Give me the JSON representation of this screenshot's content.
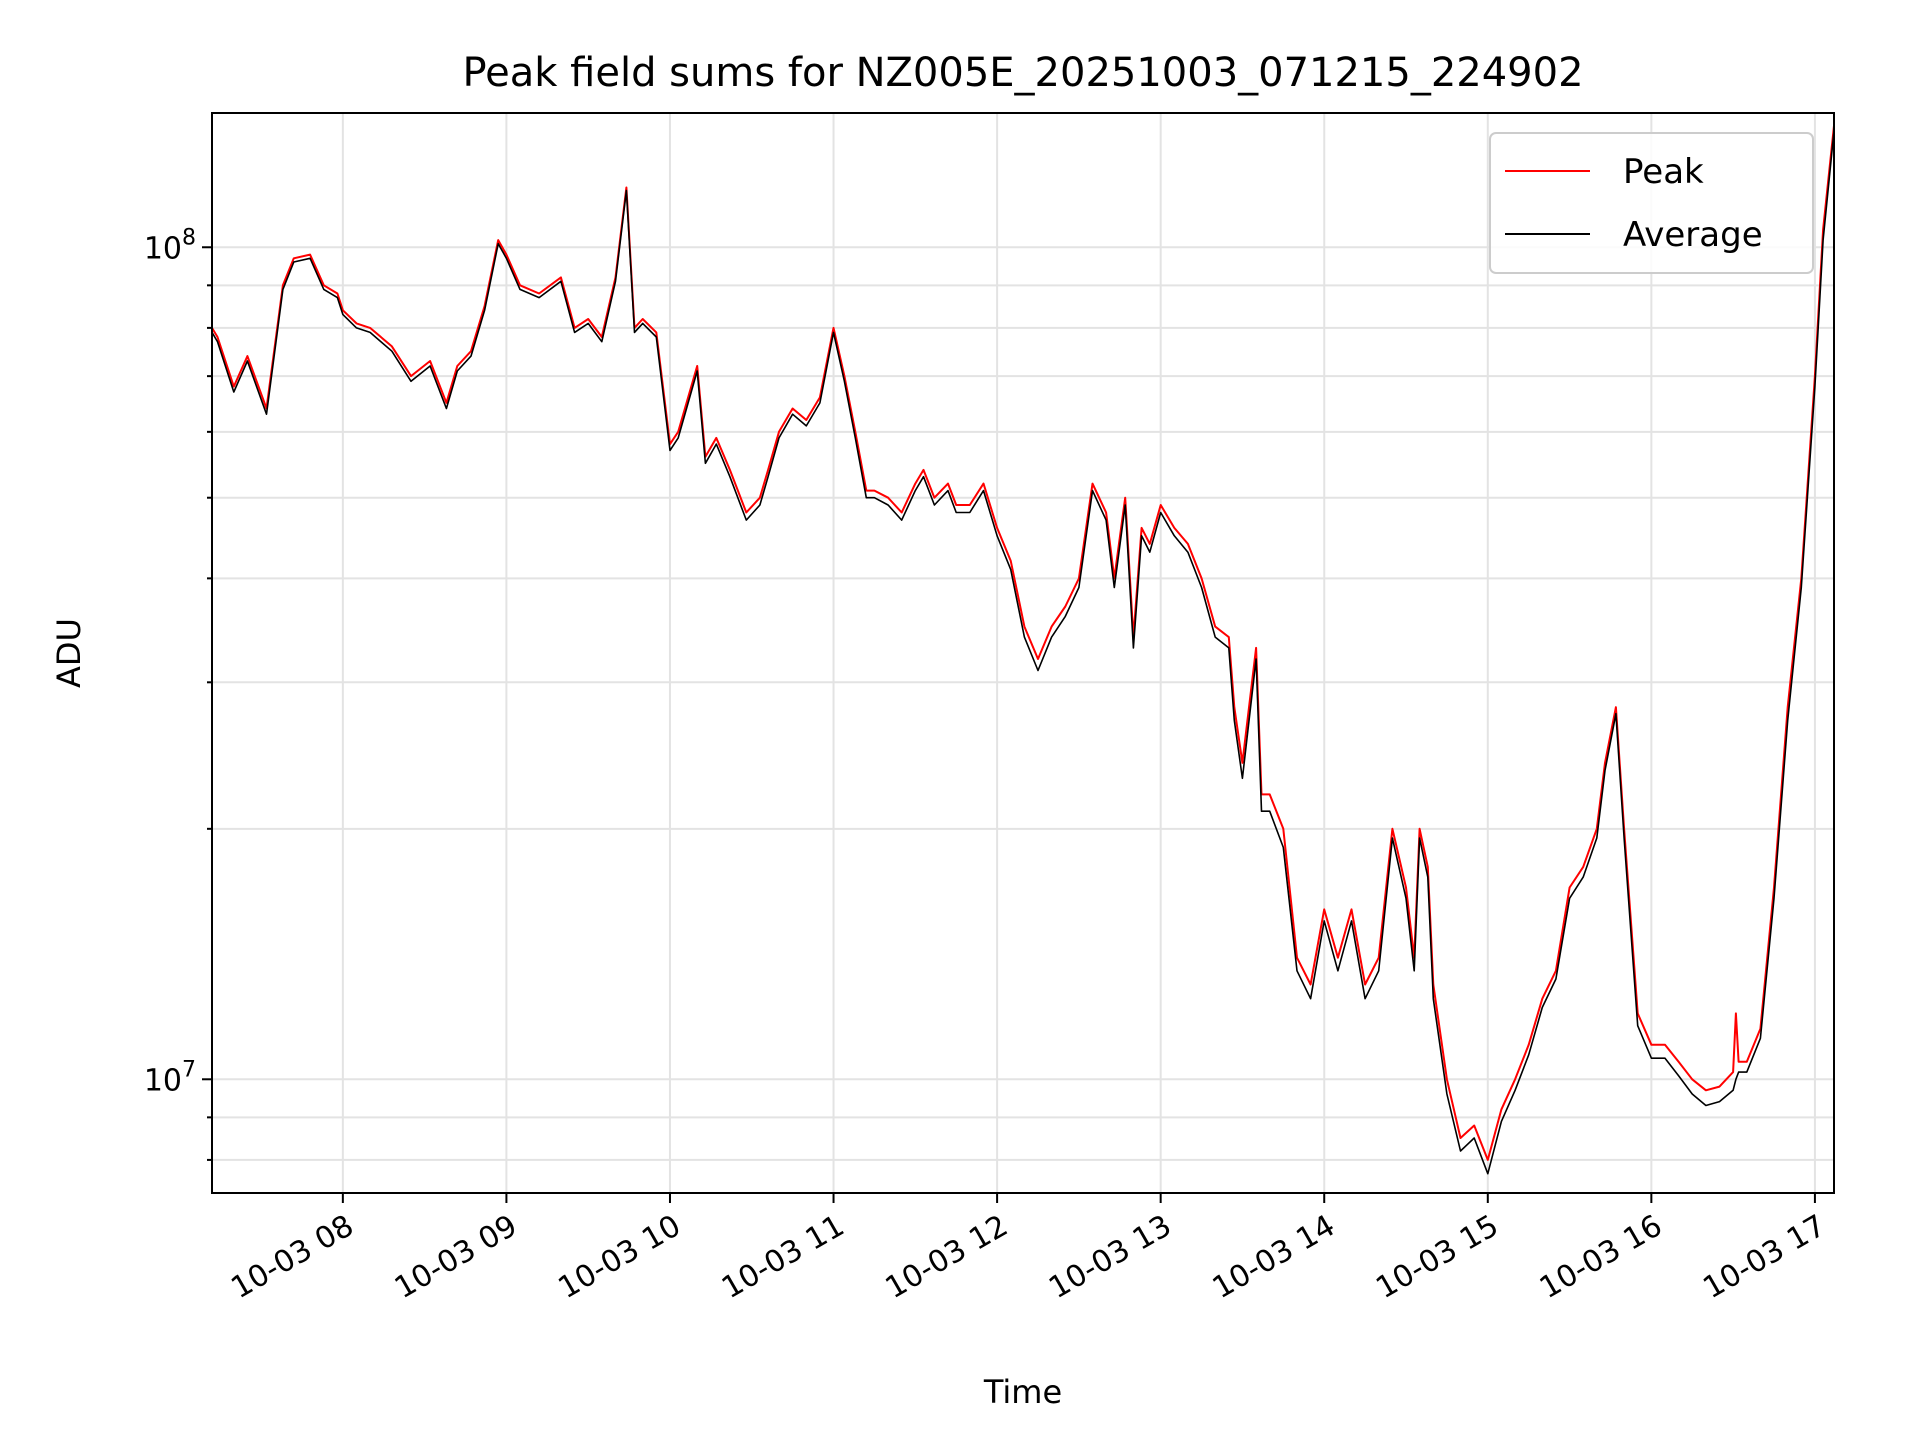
{
  "chart_data": {
    "type": "line",
    "title": "Peak field sums for NZ005E_20251003_071215_224902",
    "xlabel": "Time",
    "ylabel": "ADU",
    "y_scale": "log",
    "ylim": [
      7300000,
      145000000
    ],
    "xlim": [
      "2025-10-03 07:12",
      "2025-10-03 17:07"
    ],
    "x_ticks": [
      "10-03 08",
      "10-03 09",
      "10-03 10",
      "10-03 11",
      "10-03 12",
      "10-03 13",
      "10-03 14",
      "10-03 15",
      "10-03 16",
      "10-03 17"
    ],
    "y_tick_labels": [
      {
        "base": "10",
        "exp": "7",
        "value": 10000000
      },
      {
        "base": "10",
        "exp": "8",
        "value": 100000000
      }
    ],
    "grid": true,
    "legend_position": "upper right",
    "series": [
      {
        "name": "Peak",
        "color": "#ff0000",
        "x": [
          "2025-10-03 07:12",
          "2025-10-03 07:14",
          "2025-10-03 07:20",
          "2025-10-03 07:25",
          "2025-10-03 07:32",
          "2025-10-03 07:38",
          "2025-10-03 07:42",
          "2025-10-03 07:48",
          "2025-10-03 07:53",
          "2025-10-03 07:58",
          "2025-10-03 08:00",
          "2025-10-03 08:05",
          "2025-10-03 08:10",
          "2025-10-03 08:18",
          "2025-10-03 08:25",
          "2025-10-03 08:32",
          "2025-10-03 08:38",
          "2025-10-03 08:42",
          "2025-10-03 08:47",
          "2025-10-03 08:52",
          "2025-10-03 08:57",
          "2025-10-03 09:00",
          "2025-10-03 09:05",
          "2025-10-03 09:12",
          "2025-10-03 09:20",
          "2025-10-03 09:25",
          "2025-10-03 09:30",
          "2025-10-03 09:35",
          "2025-10-03 09:40",
          "2025-10-03 09:44",
          "2025-10-03 09:47",
          "2025-10-03 09:50",
          "2025-10-03 09:55",
          "2025-10-03 10:00",
          "2025-10-03 10:03",
          "2025-10-03 10:10",
          "2025-10-03 10:13",
          "2025-10-03 10:17",
          "2025-10-03 10:22",
          "2025-10-03 10:28",
          "2025-10-03 10:33",
          "2025-10-03 10:36",
          "2025-10-03 10:40",
          "2025-10-03 10:45",
          "2025-10-03 10:50",
          "2025-10-03 10:55",
          "2025-10-03 11:00",
          "2025-10-03 11:04",
          "2025-10-03 11:08",
          "2025-10-03 11:12",
          "2025-10-03 11:15",
          "2025-10-03 11:20",
          "2025-10-03 11:25",
          "2025-10-03 11:30",
          "2025-10-03 11:33",
          "2025-10-03 11:37",
          "2025-10-03 11:42",
          "2025-10-03 11:45",
          "2025-10-03 11:50",
          "2025-10-03 11:55",
          "2025-10-03 12:00",
          "2025-10-03 12:05",
          "2025-10-03 12:10",
          "2025-10-03 12:15",
          "2025-10-03 12:20",
          "2025-10-03 12:25",
          "2025-10-03 12:30",
          "2025-10-03 12:35",
          "2025-10-03 12:40",
          "2025-10-03 12:43",
          "2025-10-03 12:47",
          "2025-10-03 12:50",
          "2025-10-03 12:53",
          "2025-10-03 12:56",
          "2025-10-03 13:00",
          "2025-10-03 13:05",
          "2025-10-03 13:10",
          "2025-10-03 13:15",
          "2025-10-03 13:20",
          "2025-10-03 13:25",
          "2025-10-03 13:27",
          "2025-10-03 13:30",
          "2025-10-03 13:35",
          "2025-10-03 13:37",
          "2025-10-03 13:40",
          "2025-10-03 13:45",
          "2025-10-03 13:50",
          "2025-10-03 13:55",
          "2025-10-03 14:00",
          "2025-10-03 14:05",
          "2025-10-03 14:10",
          "2025-10-03 14:15",
          "2025-10-03 14:20",
          "2025-10-03 14:25",
          "2025-10-03 14:30",
          "2025-10-03 14:33",
          "2025-10-03 14:35",
          "2025-10-03 14:38",
          "2025-10-03 14:40",
          "2025-10-03 14:45",
          "2025-10-03 14:50",
          "2025-10-03 14:55",
          "2025-10-03 15:00",
          "2025-10-03 15:05",
          "2025-10-03 15:10",
          "2025-10-03 15:15",
          "2025-10-03 15:20",
          "2025-10-03 15:25",
          "2025-10-03 15:30",
          "2025-10-03 15:35",
          "2025-10-03 15:40",
          "2025-10-03 15:43",
          "2025-10-03 15:47",
          "2025-10-03 15:50",
          "2025-10-03 15:55",
          "2025-10-03 16:00",
          "2025-10-03 16:05",
          "2025-10-03 16:10",
          "2025-10-03 16:15",
          "2025-10-03 16:20",
          "2025-10-03 16:25",
          "2025-10-03 16:30",
          "2025-10-03 16:31",
          "2025-10-03 16:32",
          "2025-10-03 16:35",
          "2025-10-03 16:40",
          "2025-10-03 16:45",
          "2025-10-03 16:50",
          "2025-10-03 16:55",
          "2025-10-03 17:00",
          "2025-10-03 17:03",
          "2025-10-03 17:07"
        ],
        "y": [
          80000000,
          78000000,
          68000000,
          74000000,
          64000000,
          90000000,
          97000000,
          98000000,
          90000000,
          88000000,
          84000000,
          81000000,
          80000000,
          76000000,
          70000000,
          73000000,
          65000000,
          72000000,
          75000000,
          85000000,
          102000000,
          98000000,
          90000000,
          88000000,
          92000000,
          80000000,
          82000000,
          78000000,
          92000000,
          118000000,
          80000000,
          82000000,
          79000000,
          58000000,
          60000000,
          72000000,
          56000000,
          59000000,
          54000000,
          48000000,
          50000000,
          54000000,
          60000000,
          64000000,
          62000000,
          66000000,
          80000000,
          70000000,
          60000000,
          51000000,
          51000000,
          50000000,
          48000000,
          52000000,
          54000000,
          50000000,
          52000000,
          49000000,
          49000000,
          52000000,
          46000000,
          42000000,
          35000000,
          32000000,
          35000000,
          37000000,
          40000000,
          52000000,
          48000000,
          40000000,
          50000000,
          34000000,
          46000000,
          44000000,
          49000000,
          46000000,
          44000000,
          40000000,
          35000000,
          34000000,
          28000000,
          24000000,
          33000000,
          22000000,
          22000000,
          20000000,
          14000000,
          13000000,
          16000000,
          14000000,
          16000000,
          13000000,
          14000000,
          20000000,
          17000000,
          14000000,
          20000000,
          18000000,
          13000000,
          10000000,
          8500000,
          8800000,
          8000000,
          9200000,
          10000000,
          11000000,
          12500000,
          13500000,
          17000000,
          18000000,
          20000000,
          24000000,
          28000000,
          20000000,
          12000000,
          11000000,
          11000000,
          10500000,
          10000000,
          9700000,
          9800000,
          10200000,
          12000000,
          10500000,
          10500000,
          11500000,
          17000000,
          28000000,
          40000000,
          70000000,
          105000000,
          140000000
        ]
      },
      {
        "name": "Average",
        "color": "#000000",
        "x": [
          "2025-10-03 07:12",
          "2025-10-03 07:14",
          "2025-10-03 07:20",
          "2025-10-03 07:25",
          "2025-10-03 07:32",
          "2025-10-03 07:38",
          "2025-10-03 07:42",
          "2025-10-03 07:48",
          "2025-10-03 07:53",
          "2025-10-03 07:58",
          "2025-10-03 08:00",
          "2025-10-03 08:05",
          "2025-10-03 08:10",
          "2025-10-03 08:18",
          "2025-10-03 08:25",
          "2025-10-03 08:32",
          "2025-10-03 08:38",
          "2025-10-03 08:42",
          "2025-10-03 08:47",
          "2025-10-03 08:52",
          "2025-10-03 08:57",
          "2025-10-03 09:00",
          "2025-10-03 09:05",
          "2025-10-03 09:12",
          "2025-10-03 09:20",
          "2025-10-03 09:25",
          "2025-10-03 09:30",
          "2025-10-03 09:35",
          "2025-10-03 09:40",
          "2025-10-03 09:44",
          "2025-10-03 09:47",
          "2025-10-03 09:50",
          "2025-10-03 09:55",
          "2025-10-03 10:00",
          "2025-10-03 10:03",
          "2025-10-03 10:10",
          "2025-10-03 10:13",
          "2025-10-03 10:17",
          "2025-10-03 10:22",
          "2025-10-03 10:28",
          "2025-10-03 10:33",
          "2025-10-03 10:36",
          "2025-10-03 10:40",
          "2025-10-03 10:45",
          "2025-10-03 10:50",
          "2025-10-03 10:55",
          "2025-10-03 11:00",
          "2025-10-03 11:04",
          "2025-10-03 11:08",
          "2025-10-03 11:12",
          "2025-10-03 11:15",
          "2025-10-03 11:20",
          "2025-10-03 11:25",
          "2025-10-03 11:30",
          "2025-10-03 11:33",
          "2025-10-03 11:37",
          "2025-10-03 11:42",
          "2025-10-03 11:45",
          "2025-10-03 11:50",
          "2025-10-03 11:55",
          "2025-10-03 12:00",
          "2025-10-03 12:05",
          "2025-10-03 12:10",
          "2025-10-03 12:15",
          "2025-10-03 12:20",
          "2025-10-03 12:25",
          "2025-10-03 12:30",
          "2025-10-03 12:35",
          "2025-10-03 12:40",
          "2025-10-03 12:43",
          "2025-10-03 12:47",
          "2025-10-03 12:50",
          "2025-10-03 12:53",
          "2025-10-03 12:56",
          "2025-10-03 13:00",
          "2025-10-03 13:05",
          "2025-10-03 13:10",
          "2025-10-03 13:15",
          "2025-10-03 13:20",
          "2025-10-03 13:25",
          "2025-10-03 13:27",
          "2025-10-03 13:30",
          "2025-10-03 13:35",
          "2025-10-03 13:37",
          "2025-10-03 13:40",
          "2025-10-03 13:45",
          "2025-10-03 13:50",
          "2025-10-03 13:55",
          "2025-10-03 14:00",
          "2025-10-03 14:05",
          "2025-10-03 14:10",
          "2025-10-03 14:15",
          "2025-10-03 14:20",
          "2025-10-03 14:25",
          "2025-10-03 14:30",
          "2025-10-03 14:33",
          "2025-10-03 14:35",
          "2025-10-03 14:38",
          "2025-10-03 14:40",
          "2025-10-03 14:45",
          "2025-10-03 14:50",
          "2025-10-03 14:55",
          "2025-10-03 15:00",
          "2025-10-03 15:05",
          "2025-10-03 15:10",
          "2025-10-03 15:15",
          "2025-10-03 15:20",
          "2025-10-03 15:25",
          "2025-10-03 15:30",
          "2025-10-03 15:35",
          "2025-10-03 15:40",
          "2025-10-03 15:43",
          "2025-10-03 15:47",
          "2025-10-03 15:50",
          "2025-10-03 15:55",
          "2025-10-03 16:00",
          "2025-10-03 16:05",
          "2025-10-03 16:10",
          "2025-10-03 16:15",
          "2025-10-03 16:20",
          "2025-10-03 16:25",
          "2025-10-03 16:30",
          "2025-10-03 16:31",
          "2025-10-03 16:32",
          "2025-10-03 16:35",
          "2025-10-03 16:40",
          "2025-10-03 16:45",
          "2025-10-03 16:50",
          "2025-10-03 16:55",
          "2025-10-03 17:00",
          "2025-10-03 17:03",
          "2025-10-03 17:07"
        ],
        "y": [
          79000000,
          77000000,
          67000000,
          73000000,
          63000000,
          89000000,
          96000000,
          97000000,
          89000000,
          87000000,
          83000000,
          80000000,
          79000000,
          75000000,
          69000000,
          72000000,
          64000000,
          71000000,
          74000000,
          84000000,
          101000000,
          97000000,
          89000000,
          87000000,
          91000000,
          79000000,
          81000000,
          77000000,
          91000000,
          117000000,
          79000000,
          81000000,
          78000000,
          57000000,
          59000000,
          71000000,
          55000000,
          58000000,
          53000000,
          47000000,
          49000000,
          53000000,
          59000000,
          63000000,
          61000000,
          65000000,
          79000000,
          69000000,
          59000000,
          50000000,
          50000000,
          49000000,
          47000000,
          51000000,
          53000000,
          49000000,
          51000000,
          48000000,
          48000000,
          51000000,
          45000000,
          41000000,
          34000000,
          31000000,
          34000000,
          36000000,
          39000000,
          51000000,
          47000000,
          39000000,
          49000000,
          33000000,
          45000000,
          43000000,
          48000000,
          45000000,
          43000000,
          39000000,
          34000000,
          33000000,
          27000000,
          23000000,
          32000000,
          21000000,
          21000000,
          19000000,
          13500000,
          12500000,
          15500000,
          13500000,
          15500000,
          12500000,
          13500000,
          19500000,
          16500000,
          13500000,
          19500000,
          17500000,
          12500000,
          9600000,
          8200000,
          8500000,
          7700000,
          8900000,
          9700000,
          10700000,
          12200000,
          13200000,
          16500000,
          17500000,
          19500000,
          23500000,
          27500000,
          19500000,
          11600000,
          10600000,
          10600000,
          10100000,
          9600000,
          9300000,
          9400000,
          9700000,
          10000000,
          10200000,
          10200000,
          11200000,
          16500000,
          27000000,
          39000000,
          68000000,
          102000000,
          138000000
        ]
      }
    ]
  }
}
